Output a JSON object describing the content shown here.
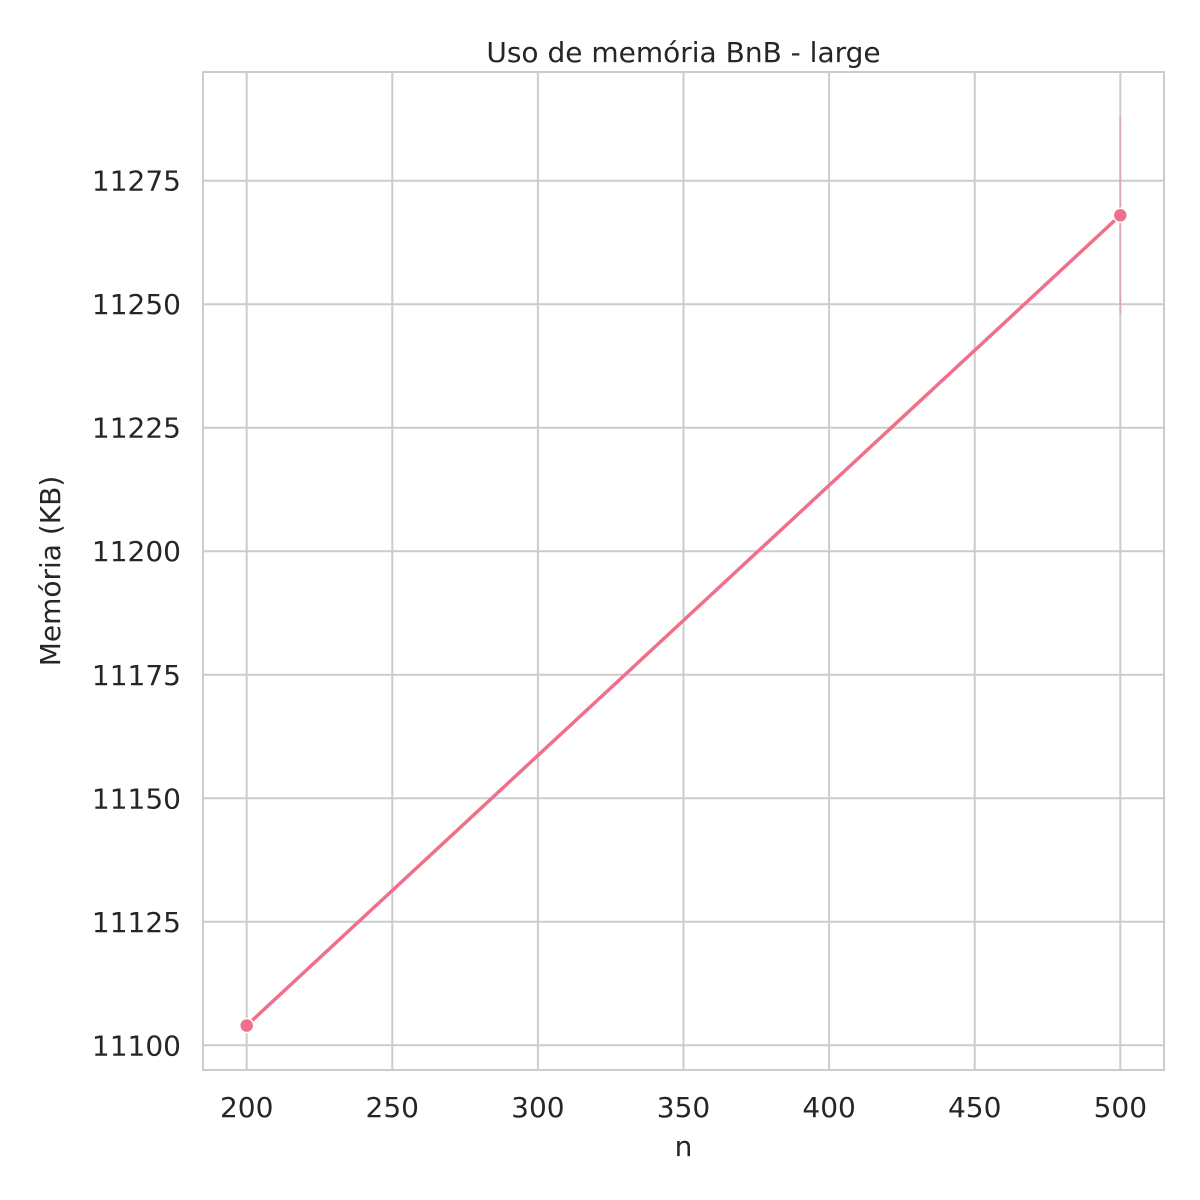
{
  "chart_data": {
    "type": "line",
    "title": "Uso de memória BnB - large",
    "xlabel": "n",
    "ylabel": "Memória (KB)",
    "x": [
      200,
      500
    ],
    "series": [
      {
        "values": [
          11104,
          11268
        ],
        "error": [
          null,
          [
            11248,
            11288
          ]
        ],
        "color": "#f0708a"
      }
    ],
    "xlim": [
      185,
      515
    ],
    "ylim": [
      11095,
      11297
    ],
    "xticks": [
      200,
      250,
      300,
      350,
      400,
      450,
      500
    ],
    "yticks": [
      11100,
      11125,
      11150,
      11175,
      11200,
      11225,
      11250,
      11275
    ],
    "grid": true,
    "legend": "none"
  }
}
